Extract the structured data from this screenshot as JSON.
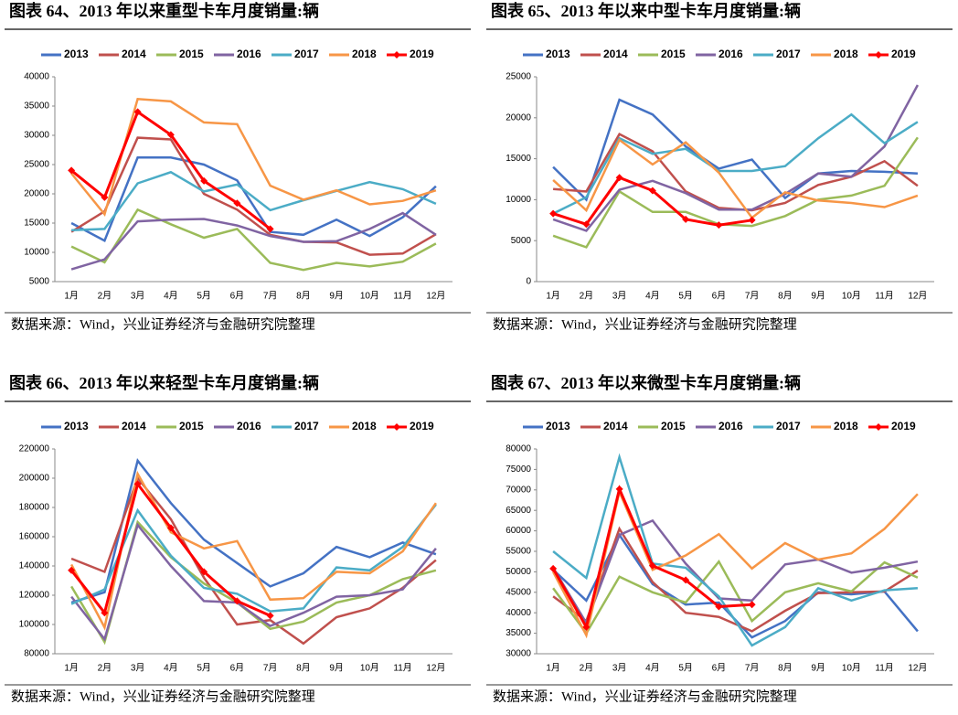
{
  "chart_data": [
    {
      "type": "line",
      "title": "图表 64、2013 年以来重型卡车月度销量:辆",
      "note": "数据来源：Wind，兴业证券经济与金融研究院整理",
      "categories": [
        "1月",
        "2月",
        "3月",
        "4月",
        "5月",
        "6月",
        "7月",
        "8月",
        "9月",
        "10月",
        "11月",
        "12月"
      ],
      "ylim": [
        5000,
        40000
      ],
      "yticks": [
        5000,
        10000,
        15000,
        20000,
        25000,
        30000,
        35000,
        40000
      ],
      "grid": false,
      "series": [
        {
          "name": "2013",
          "color": "#4472c4",
          "values": [
            15000,
            12000,
            26200,
            26200,
            25000,
            22300,
            13500,
            13000,
            15600,
            12800,
            16000,
            21300
          ]
        },
        {
          "name": "2014",
          "color": "#c0504d",
          "values": [
            13500,
            17000,
            29600,
            29300,
            20000,
            17300,
            13000,
            11800,
            11700,
            9600,
            9800,
            13100
          ]
        },
        {
          "name": "2015",
          "color": "#9bbb59",
          "values": [
            11000,
            8300,
            17300,
            14800,
            12500,
            14000,
            8200,
            7000,
            8200,
            7600,
            8400,
            11500
          ]
        },
        {
          "name": "2016",
          "color": "#8064a2",
          "values": [
            7100,
            8800,
            15300,
            15600,
            15700,
            14600,
            12800,
            11800,
            11900,
            14000,
            16700,
            13000
          ]
        },
        {
          "name": "2017",
          "color": "#4bacc6",
          "values": [
            13800,
            14000,
            21800,
            23700,
            20400,
            21600,
            17200,
            18900,
            20500,
            22000,
            20800,
            18300
          ]
        },
        {
          "name": "2018",
          "color": "#f79646",
          "values": [
            23500,
            16500,
            36200,
            35800,
            32200,
            31900,
            21400,
            19000,
            20600,
            18200,
            18800,
            20600
          ]
        },
        {
          "name": "2019",
          "color": "#ff0000",
          "values": [
            24000,
            19400,
            34000,
            30100,
            22200,
            18400,
            14000,
            null,
            null,
            null,
            null,
            null
          ]
        }
      ]
    },
    {
      "type": "line",
      "title": "图表 65、2013 年以来中型卡车月度销量:辆",
      "note": "数据来源：Wind，兴业证券经济与金融研究院整理",
      "categories": [
        "1月",
        "2月",
        "3月",
        "4月",
        "5月",
        "6月",
        "7月",
        "8月",
        "9月",
        "10月",
        "11月",
        "12月"
      ],
      "ylim": [
        0,
        25000
      ],
      "yticks": [
        0,
        5000,
        10000,
        15000,
        20000,
        25000
      ],
      "grid": false,
      "series": [
        {
          "name": "2013",
          "color": "#4472c4",
          "values": [
            14000,
            10000,
            22200,
            20400,
            16500,
            13800,
            14900,
            10200,
            13200,
            13500,
            13400,
            13200
          ]
        },
        {
          "name": "2014",
          "color": "#c0504d",
          "values": [
            11300,
            11000,
            18000,
            15900,
            11000,
            9000,
            8700,
            9600,
            11800,
            12800,
            14700,
            11700
          ]
        },
        {
          "name": "2015",
          "color": "#9bbb59",
          "values": [
            5600,
            4200,
            11000,
            8500,
            8500,
            7000,
            6800,
            8000,
            10000,
            10500,
            11700,
            17600
          ]
        },
        {
          "name": "2016",
          "color": "#8064a2",
          "values": [
            7600,
            6200,
            11200,
            12300,
            10800,
            8800,
            8800,
            10700,
            13200,
            12800,
            16500,
            24000
          ]
        },
        {
          "name": "2017",
          "color": "#4bacc6",
          "values": [
            8300,
            10300,
            17500,
            15600,
            16200,
            13500,
            13500,
            14100,
            17500,
            20400,
            16900,
            19500
          ]
        },
        {
          "name": "2018",
          "color": "#f79646",
          "values": [
            12400,
            8700,
            17300,
            14300,
            17000,
            13300,
            7800,
            10900,
            9900,
            9600,
            9100,
            10500
          ]
        },
        {
          "name": "2019",
          "color": "#ff0000",
          "values": [
            8300,
            7000,
            12700,
            11100,
            7600,
            6900,
            7500,
            null,
            null,
            null,
            null,
            null
          ]
        }
      ]
    },
    {
      "type": "line",
      "title": "图表 66、2013 年以来轻型卡车月度销量:辆",
      "note": "数据来源：Wind，兴业证券经济与金融研究院整理",
      "categories": [
        "1月",
        "2月",
        "3月",
        "4月",
        "5月",
        "6月",
        "7月",
        "8月",
        "9月",
        "10月",
        "11月",
        "12月"
      ],
      "ylim": [
        80000,
        220000
      ],
      "yticks": [
        80000,
        100000,
        120000,
        140000,
        160000,
        180000,
        200000,
        220000
      ],
      "grid": false,
      "series": [
        {
          "name": "2013",
          "color": "#4472c4",
          "values": [
            115000,
            122000,
            212000,
            183000,
            158000,
            142000,
            126000,
            135000,
            153000,
            146000,
            156000,
            148000
          ]
        },
        {
          "name": "2014",
          "color": "#c0504d",
          "values": [
            145000,
            136000,
            200000,
            172000,
            132000,
            100000,
            103000,
            87000,
            105000,
            111000,
            125000,
            144000
          ]
        },
        {
          "name": "2015",
          "color": "#9bbb59",
          "values": [
            126000,
            88000,
            170000,
            146000,
            128000,
            115000,
            97000,
            102000,
            115000,
            120000,
            131000,
            137000
          ]
        },
        {
          "name": "2016",
          "color": "#8064a2",
          "values": [
            119000,
            90000,
            168000,
            140000,
            116000,
            115000,
            99000,
            108000,
            119000,
            120000,
            124000,
            152000
          ]
        },
        {
          "name": "2017",
          "color": "#4bacc6",
          "values": [
            114000,
            124000,
            178000,
            147000,
            125000,
            121000,
            109000,
            111000,
            139000,
            137000,
            153000,
            182000
          ]
        },
        {
          "name": "2018",
          "color": "#f79646",
          "values": [
            141000,
            98000,
            203000,
            163000,
            152000,
            157000,
            117000,
            118000,
            136000,
            135000,
            150000,
            183000
          ]
        },
        {
          "name": "2019",
          "color": "#ff0000",
          "values": [
            137000,
            108000,
            196000,
            166000,
            136000,
            116000,
            106000,
            null,
            null,
            null,
            null,
            null
          ]
        }
      ]
    },
    {
      "type": "line",
      "title": "图表 67、2013 年以来微型卡车月度销量:辆",
      "note": "数据来源：Wind，兴业证券经济与金融研究院整理",
      "categories": [
        "1月",
        "2月",
        "3月",
        "4月",
        "5月",
        "6月",
        "7月",
        "8月",
        "9月",
        "10月",
        "11月",
        "12月"
      ],
      "ylim": [
        30000,
        80000
      ],
      "yticks": [
        30000,
        35000,
        40000,
        45000,
        50000,
        55000,
        60000,
        65000,
        70000,
        75000,
        80000
      ],
      "grid": false,
      "series": [
        {
          "name": "2013",
          "color": "#4472c4",
          "values": [
            50500,
            43000,
            59000,
            47000,
            42000,
            42500,
            34000,
            38000,
            45000,
            44500,
            45200,
            35500
          ]
        },
        {
          "name": "2014",
          "color": "#c0504d",
          "values": [
            44000,
            38000,
            60500,
            47500,
            40000,
            39000,
            35500,
            40500,
            44800,
            45000,
            45200,
            50300
          ]
        },
        {
          "name": "2015",
          "color": "#9bbb59",
          "values": [
            46000,
            35000,
            48800,
            45000,
            42500,
            52500,
            38000,
            45000,
            47200,
            45200,
            52300,
            48600
          ]
        },
        {
          "name": "2016",
          "color": "#8064a2",
          "values": [
            51000,
            37500,
            59000,
            62500,
            52000,
            43500,
            43000,
            51800,
            53000,
            49800,
            51000,
            52500
          ]
        },
        {
          "name": "2017",
          "color": "#4bacc6",
          "values": [
            55000,
            48500,
            78000,
            52000,
            51000,
            44000,
            32000,
            36500,
            46000,
            43000,
            45500,
            46000
          ]
        },
        {
          "name": "2018",
          "color": "#f79646",
          "values": [
            50000,
            34500,
            69500,
            50500,
            54000,
            59200,
            50800,
            57000,
            53000,
            54500,
            60500,
            69000
          ]
        },
        {
          "name": "2019",
          "color": "#ff0000",
          "values": [
            50800,
            36500,
            70200,
            51500,
            48000,
            41500,
            42000,
            null,
            null,
            null,
            null,
            null
          ]
        }
      ]
    }
  ]
}
